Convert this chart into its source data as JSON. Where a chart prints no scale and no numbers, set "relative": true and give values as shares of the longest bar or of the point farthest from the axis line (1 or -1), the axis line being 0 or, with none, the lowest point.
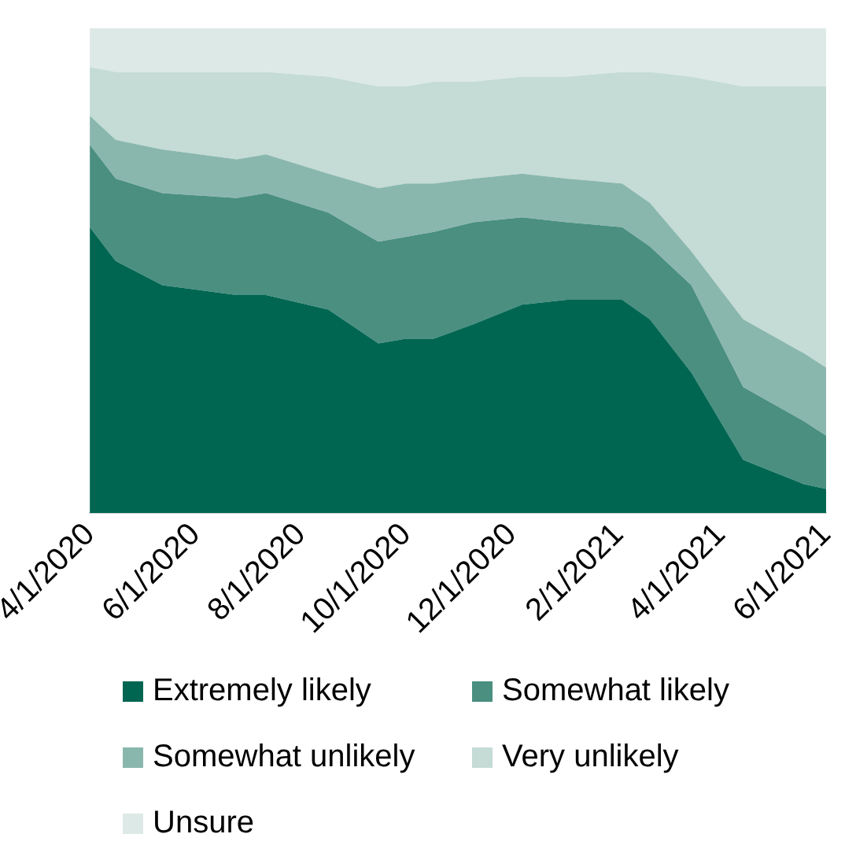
{
  "chart_data": {
    "type": "area",
    "stacked": true,
    "relative": true,
    "legend": "bottom",
    "grid": false,
    "x": [
      "2020-04-01",
      "2020-04-16",
      "2020-05-13",
      "2020-06-25",
      "2020-07-12",
      "2020-08-17",
      "2020-09-15",
      "2020-10-01",
      "2020-10-17",
      "2020-11-09",
      "2020-12-07",
      "2021-01-02",
      "2021-02-03",
      "2021-02-19",
      "2021-03-15",
      "2021-04-14",
      "2021-05-19",
      "2021-06-01"
    ],
    "xlim": [
      "2020-04-01",
      "2021-06-01"
    ],
    "xticks": [
      {
        "value": "2020-04-01",
        "label": "4/1/2020"
      },
      {
        "value": "2020-06-01",
        "label": "6/1/2020"
      },
      {
        "value": "2020-08-01",
        "label": "8/1/2020"
      },
      {
        "value": "2020-10-01",
        "label": "10/1/2020"
      },
      {
        "value": "2020-12-01",
        "label": "12/1/2020"
      },
      {
        "value": "2021-02-01",
        "label": "2/1/2021"
      },
      {
        "value": "2021-04-01",
        "label": "4/1/2021"
      },
      {
        "value": "2021-06-01",
        "label": "6/1/2021"
      }
    ],
    "series": [
      {
        "name": "Extremely likely",
        "color": "#006652",
        "values": [
          0.59,
          0.52,
          0.47,
          0.45,
          0.45,
          0.42,
          0.35,
          0.36,
          0.36,
          0.39,
          0.43,
          0.44,
          0.44,
          0.4,
          0.29,
          0.11,
          0.06,
          0.05
        ]
      },
      {
        "name": "Somewhat likely",
        "color": "#4a8f80",
        "values": [
          0.17,
          0.17,
          0.19,
          0.2,
          0.21,
          0.2,
          0.21,
          0.21,
          0.22,
          0.21,
          0.18,
          0.16,
          0.15,
          0.15,
          0.18,
          0.15,
          0.13,
          0.11
        ]
      },
      {
        "name": "Somewhat unlikely",
        "color": "#8ab7ad",
        "values": [
          0.06,
          0.08,
          0.09,
          0.08,
          0.08,
          0.08,
          0.11,
          0.11,
          0.1,
          0.09,
          0.09,
          0.09,
          0.09,
          0.09,
          0.07,
          0.14,
          0.14,
          0.14
        ]
      },
      {
        "name": "Very unlikely",
        "color": "#c4dbd6",
        "values": [
          0.1,
          0.14,
          0.16,
          0.18,
          0.17,
          0.2,
          0.21,
          0.2,
          0.21,
          0.2,
          0.2,
          0.21,
          0.23,
          0.27,
          0.36,
          0.48,
          0.55,
          0.58
        ]
      },
      {
        "name": "Unsure",
        "color": "#dde9e6",
        "values": [
          0.08,
          0.09,
          0.09,
          0.09,
          0.09,
          0.1,
          0.12,
          0.12,
          0.11,
          0.11,
          0.1,
          0.1,
          0.09,
          0.09,
          0.1,
          0.12,
          0.12,
          0.12
        ]
      }
    ]
  }
}
